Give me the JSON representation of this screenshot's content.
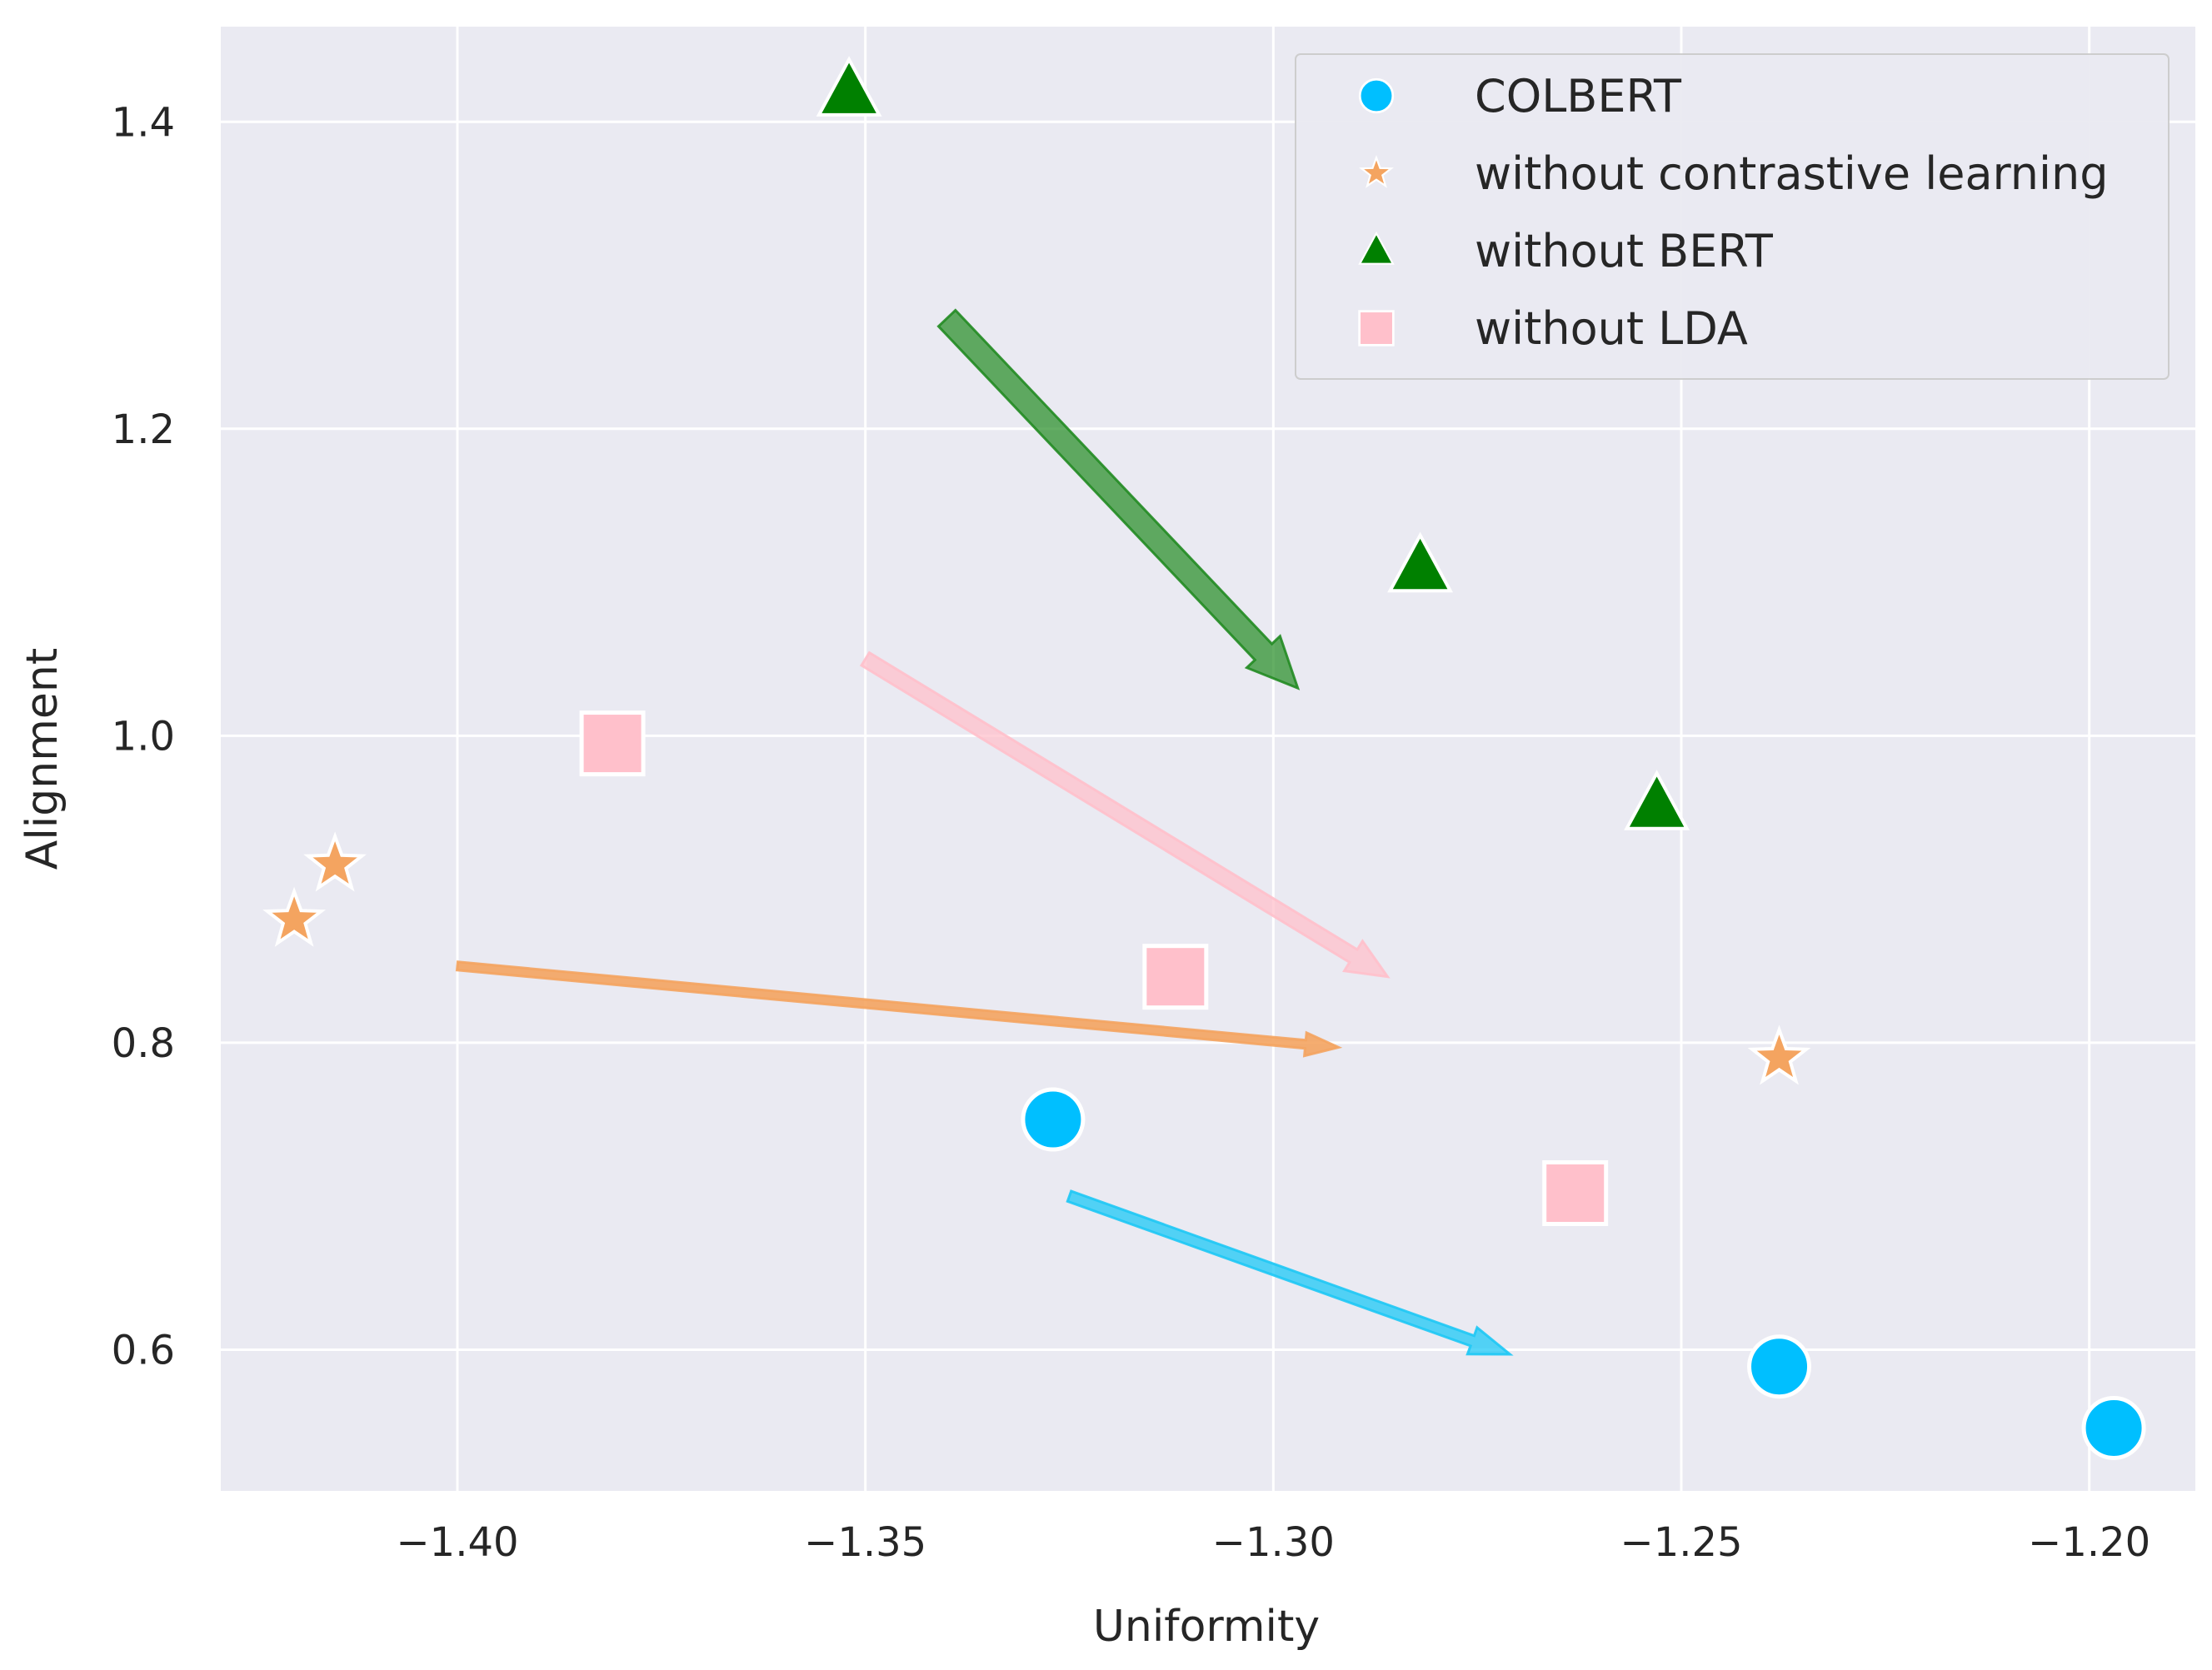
{
  "chart_data": {
    "type": "scatter",
    "title": "",
    "xlabel": "Uniformity",
    "ylabel": "Alignment",
    "xlim": [
      -1.429,
      -1.187
    ],
    "ylim": [
      0.508,
      1.462
    ],
    "xticks": [
      -1.4,
      -1.35,
      -1.3,
      -1.25,
      -1.2
    ],
    "xtick_labels": [
      "−1.40",
      "−1.35",
      "−1.30",
      "−1.25",
      "−1.20"
    ],
    "yticks": [
      0.6,
      0.8,
      1.0,
      1.2,
      1.4
    ],
    "ytick_labels": [
      "0.6",
      "0.8",
      "1.0",
      "1.2",
      "1.4"
    ],
    "grid": true,
    "legend_position": "top-right",
    "series": [
      {
        "name": "COLBERT",
        "marker": "circle",
        "color": "#00bfff",
        "points": [
          [
            -1.327,
            0.75
          ],
          [
            -1.238,
            0.589
          ],
          [
            -1.197,
            0.549
          ]
        ]
      },
      {
        "name": "without contrastive learning",
        "marker": "star",
        "color": "#f4a460",
        "points": [
          [
            -1.42,
            0.88
          ],
          [
            -1.415,
            0.916
          ],
          [
            -1.238,
            0.79
          ]
        ]
      },
      {
        "name": "without BERT",
        "marker": "triangle",
        "color": "#008000",
        "points": [
          [
            -1.352,
            1.42
          ],
          [
            -1.282,
            1.11
          ],
          [
            -1.253,
            0.955
          ]
        ]
      },
      {
        "name": "without LDA",
        "marker": "square",
        "color": "#ffc0cb",
        "points": [
          [
            -1.381,
            0.995
          ],
          [
            -1.312,
            0.843
          ],
          [
            -1.263,
            0.702
          ]
        ]
      }
    ],
    "annotations": [
      {
        "type": "arrow",
        "series": "without BERT",
        "color": "#228b22",
        "from": [
          -1.34,
          1.272
        ],
        "to": [
          -1.297,
          1.031
        ]
      },
      {
        "type": "arrow",
        "series": "without LDA",
        "color": "#ffc0cb",
        "from": [
          -1.35,
          1.05
        ],
        "to": [
          -1.286,
          0.843
        ]
      },
      {
        "type": "arrow",
        "series": "without contrastive learning",
        "color": "#f4a460",
        "from": [
          -1.4,
          0.85
        ],
        "to": [
          -1.292,
          0.797
        ]
      },
      {
        "type": "arrow",
        "series": "COLBERT",
        "color": "#1ec8f5",
        "from": [
          -1.325,
          0.7
        ],
        "to": [
          -1.271,
          0.597
        ]
      }
    ],
    "colors": {
      "plot_background": "#eaeaf2",
      "grid": "#ffffff",
      "text": "#262626"
    }
  }
}
